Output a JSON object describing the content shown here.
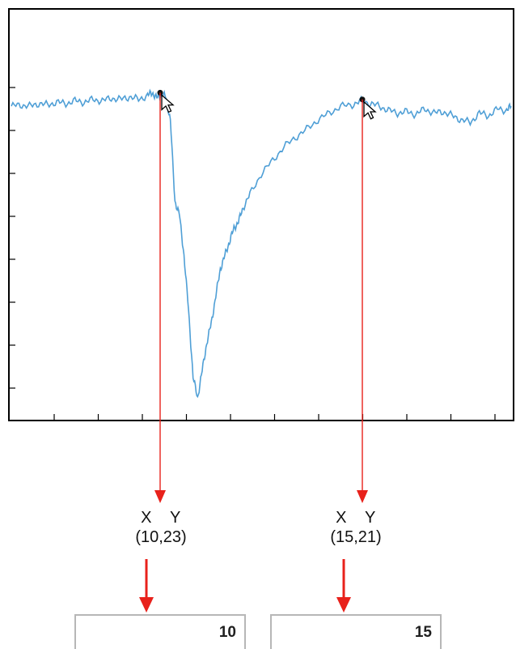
{
  "chart_data": {
    "type": "line",
    "x_range": [
      0,
      22
    ],
    "y_range": [
      0,
      30
    ],
    "series": [
      {
        "color": "#4f9fd6",
        "x": [
          0,
          0.4,
          0.8,
          1.2,
          1.6,
          2.0,
          2.4,
          2.8,
          3.2,
          3.6,
          4.0,
          4.4,
          4.8,
          5.2,
          5.6,
          6.0,
          6.2,
          6.4,
          6.6,
          6.8,
          7.0,
          7.2,
          7.4,
          7.6,
          7.8,
          8.0,
          8.2,
          8.4,
          8.6,
          8.8,
          9.0,
          9.2,
          9.4,
          9.6,
          9.8,
          10.0,
          10.2,
          10.5,
          11.0,
          11.5,
          12.0,
          12.5,
          13.0,
          13.5,
          14.0,
          14.5,
          15.0,
          15.4,
          15.8,
          16.2,
          16.6,
          17.0,
          17.4,
          17.8,
          18.2,
          18.6,
          19.0,
          19.4,
          19.8,
          20.2,
          20.6,
          21.0,
          21.4,
          21.8,
          22
        ],
        "y": [
          23.0,
          23.1,
          23.0,
          23.2,
          23.1,
          23.3,
          23.2,
          23.4,
          23.3,
          23.5,
          23.4,
          23.6,
          23.5,
          23.7,
          23.5,
          23.8,
          24.0,
          23.6,
          23.9,
          23.7,
          22.0,
          16.0,
          15.0,
          12.0,
          8.0,
          3.0,
          1.5,
          3.5,
          5.5,
          7.0,
          9.0,
          11.0,
          12.0,
          13.0,
          14.0,
          14.5,
          15.5,
          16.5,
          18.0,
          19.0,
          20.0,
          20.7,
          21.3,
          22.0,
          22.5,
          23.0,
          23.1,
          23.4,
          23.2,
          23.0,
          22.7,
          22.5,
          22.6,
          22.4,
          22.8,
          22.5,
          22.6,
          22.3,
          22.0,
          21.8,
          22.5,
          22.3,
          22.8,
          22.7,
          23.0
        ]
      }
    ],
    "markers": [
      {
        "x": 6.55,
        "y": 24.0
      },
      {
        "x": 15.45,
        "y": 23.5
      }
    ]
  },
  "readouts": [
    {
      "axis_x": "X",
      "axis_y": "Y",
      "coords": "(10,23)",
      "field_value": "10"
    },
    {
      "axis_x": "X",
      "axis_y": "Y",
      "coords": "(15,21)",
      "field_value": "15"
    }
  ],
  "colors": {
    "arrow": "#e8211b",
    "frame": "#000000",
    "field_border": "#b7b7b7"
  },
  "icons": {
    "pointer": "mouse-pointer-icon"
  }
}
